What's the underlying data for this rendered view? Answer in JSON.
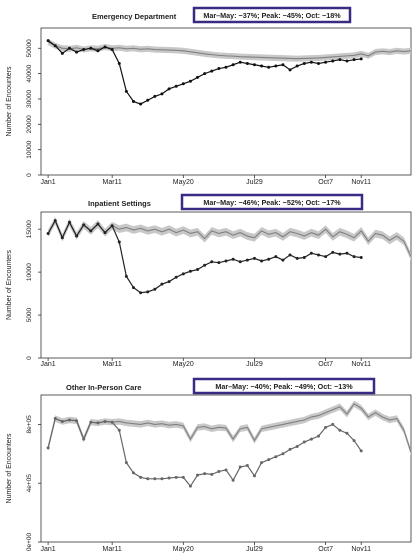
{
  "chart_data": [
    {
      "type": "line",
      "title": "Emergency Department",
      "annotation": "Mar–May: −37%; Peak: −45%; Oct: −18%",
      "ylabel": "Number of Encounters",
      "yticks": [
        0,
        10000,
        20000,
        30000,
        40000,
        50000
      ],
      "ytick_labels": [
        "0",
        "10000",
        "20000",
        "30000",
        "40000",
        "50000"
      ],
      "ylim": [
        0,
        58000
      ],
      "xlim": [
        0,
        52
      ],
      "xticks": [
        1,
        10,
        20,
        30,
        40,
        45
      ],
      "xtick_labels": [
        "Jan1",
        "Mar11",
        "May20",
        "Jul29",
        "Oct7",
        "Nov11"
      ],
      "series": [
        {
          "role": "expected",
          "color": "#808080",
          "x": [
            1,
            2,
            3,
            4,
            5,
            6,
            7,
            8,
            9,
            10,
            11,
            12,
            13,
            14,
            15,
            16,
            17,
            18,
            19,
            20,
            21,
            22,
            23,
            24,
            25,
            26,
            27,
            28,
            29,
            30,
            31,
            32,
            33,
            34,
            35,
            36,
            37,
            38,
            39,
            40,
            41,
            42,
            43,
            44,
            45,
            46,
            47,
            48,
            49,
            50,
            51,
            52
          ],
          "values": [
            52500,
            51000,
            50000,
            49800,
            50200,
            49500,
            50000,
            49800,
            50500,
            50000,
            50200,
            49800,
            50000,
            49600,
            49800,
            49500,
            49400,
            49300,
            49200,
            49000,
            48600,
            48200,
            47800,
            47500,
            47200,
            47000,
            46900,
            46700,
            46600,
            46500,
            46400,
            46300,
            46200,
            46100,
            46000,
            45900,
            46000,
            46100,
            46200,
            46400,
            46600,
            46800,
            47000,
            47200,
            47800,
            47000,
            48500,
            48800,
            48500,
            49000,
            48700,
            49000
          ],
          "band_halfwidth": 1200
        },
        {
          "role": "observed",
          "color": "#111111",
          "x": [
            1,
            2,
            3,
            4,
            5,
            6,
            7,
            8,
            9,
            10,
            11,
            12,
            13,
            14,
            15,
            16,
            17,
            18,
            19,
            20,
            21,
            22,
            23,
            24,
            25,
            26,
            27,
            28,
            29,
            30,
            31,
            32,
            33,
            34,
            35,
            36,
            37,
            38,
            39,
            40,
            41,
            42,
            43,
            44,
            45
          ],
          "values": [
            53000,
            51000,
            48000,
            50000,
            48500,
            49500,
            50000,
            49000,
            50500,
            49500,
            44000,
            33000,
            29000,
            28000,
            29500,
            31000,
            32000,
            34000,
            35000,
            36000,
            37000,
            38500,
            40000,
            41000,
            42000,
            42500,
            43500,
            44500,
            44000,
            43500,
            43000,
            42500,
            43000,
            43500,
            41500,
            43000,
            44000,
            44500,
            44000,
            44500,
            45000,
            45500,
            45000,
            45500,
            45800
          ]
        }
      ]
    },
    {
      "type": "line",
      "title": "Inpatient Settings",
      "annotation": "Mar–May: −46%; Peak: −52%; Oct: −17%",
      "ylabel": "Number of Encounters",
      "yticks": [
        0,
        5000,
        10000,
        15000
      ],
      "ytick_labels": [
        "0",
        "5000",
        "10000",
        "15000"
      ],
      "ylim": [
        0,
        17000
      ],
      "xlim": [
        0,
        52
      ],
      "xticks": [
        1,
        10,
        20,
        30,
        40,
        45
      ],
      "xtick_labels": [
        "Jan1",
        "Mar11",
        "May20",
        "Jul29",
        "Oct7",
        "Nov11"
      ],
      "series": [
        {
          "role": "expected",
          "color": "#808080",
          "x": [
            1,
            2,
            3,
            4,
            5,
            6,
            7,
            8,
            9,
            10,
            11,
            12,
            13,
            14,
            15,
            16,
            17,
            18,
            19,
            20,
            21,
            22,
            23,
            24,
            25,
            26,
            27,
            28,
            29,
            30,
            31,
            32,
            33,
            34,
            35,
            36,
            37,
            38,
            39,
            40,
            41,
            42,
            43,
            44,
            45,
            46,
            47,
            48,
            49,
            50,
            51,
            52
          ],
          "values": [
            14500,
            16000,
            14000,
            15800,
            14200,
            15500,
            14800,
            15600,
            14600,
            15400,
            15000,
            15200,
            14900,
            15100,
            14800,
            15000,
            14700,
            15000,
            14600,
            14900,
            14500,
            14700,
            13900,
            14800,
            14500,
            14700,
            14300,
            14600,
            14200,
            14000,
            14800,
            14400,
            14600,
            14100,
            14700,
            14500,
            14200,
            14600,
            14300,
            15000,
            14100,
            14700,
            14400,
            14000,
            14800,
            13600,
            14500,
            14300,
            13700,
            14200,
            13600,
            11800
          ],
          "band_halfwidth": 450
        },
        {
          "role": "observed",
          "color": "#222222",
          "x": [
            1,
            2,
            3,
            4,
            5,
            6,
            7,
            8,
            9,
            10,
            11,
            12,
            13,
            14,
            15,
            16,
            17,
            18,
            19,
            20,
            21,
            22,
            23,
            24,
            25,
            26,
            27,
            28,
            29,
            30,
            31,
            32,
            33,
            34,
            35,
            36,
            37,
            38,
            39,
            40,
            41,
            42,
            43,
            44,
            45
          ],
          "values": [
            14500,
            16000,
            14000,
            15800,
            14200,
            15500,
            14800,
            15600,
            14600,
            15400,
            13500,
            9500,
            8200,
            7600,
            7700,
            8000,
            8600,
            8900,
            9400,
            9800,
            10100,
            10300,
            10800,
            11200,
            11100,
            11300,
            11500,
            11200,
            11400,
            11600,
            11300,
            11500,
            11800,
            11400,
            12000,
            11600,
            11700,
            12200,
            12000,
            11800,
            12300,
            12100,
            12200,
            11800,
            11700
          ]
        }
      ]
    },
    {
      "type": "line",
      "title": "Other In-Person Care",
      "annotation": "Mar–May: −40%; Peak: −49%; Oct: −13%",
      "ylabel": "Number of Encounters",
      "yticks": [
        0,
        400000,
        800000
      ],
      "ytick_labels": [
        "0e+00",
        "4e+05",
        "8e+05"
      ],
      "ylim": [
        0,
        1000000
      ],
      "xlim": [
        0,
        52
      ],
      "xticks": [
        1,
        10,
        20,
        30,
        40,
        45
      ],
      "xtick_labels": [
        "Jan1",
        "Mar11",
        "May20",
        "Jul29",
        "Oct7",
        "Nov11"
      ],
      "series": [
        {
          "role": "expected",
          "color": "#808080",
          "x": [
            1,
            2,
            3,
            4,
            5,
            6,
            7,
            8,
            9,
            10,
            11,
            12,
            13,
            14,
            15,
            16,
            17,
            18,
            19,
            20,
            21,
            22,
            23,
            24,
            25,
            26,
            27,
            28,
            29,
            30,
            31,
            32,
            33,
            34,
            35,
            36,
            37,
            38,
            39,
            40,
            41,
            42,
            43,
            44,
            45,
            46,
            47,
            48,
            49,
            50,
            51,
            52
          ],
          "values": [
            640000,
            840000,
            820000,
            830000,
            825000,
            700000,
            815000,
            810000,
            820000,
            815000,
            820000,
            810000,
            805000,
            800000,
            810000,
            800000,
            805000,
            795000,
            800000,
            790000,
            700000,
            780000,
            785000,
            770000,
            780000,
            775000,
            700000,
            770000,
            780000,
            690000,
            770000,
            780000,
            790000,
            800000,
            810000,
            820000,
            830000,
            850000,
            860000,
            880000,
            900000,
            920000,
            870000,
            940000,
            910000,
            850000,
            880000,
            850000,
            830000,
            840000,
            760000,
            610000
          ],
          "band_halfwidth": 22000
        },
        {
          "role": "observed",
          "color": "#666666",
          "x": [
            1,
            2,
            3,
            4,
            5,
            6,
            7,
            8,
            9,
            10,
            11,
            12,
            13,
            14,
            15,
            16,
            17,
            18,
            19,
            20,
            21,
            22,
            23,
            24,
            25,
            26,
            27,
            28,
            29,
            30,
            31,
            32,
            33,
            34,
            35,
            36,
            37,
            38,
            39,
            40,
            41,
            42,
            43,
            44,
            45
          ],
          "values": [
            640000,
            840000,
            820000,
            830000,
            825000,
            700000,
            815000,
            810000,
            820000,
            815000,
            760000,
            540000,
            470000,
            440000,
            430000,
            430000,
            430000,
            435000,
            440000,
            440000,
            380000,
            455000,
            465000,
            460000,
            480000,
            490000,
            420000,
            510000,
            520000,
            450000,
            540000,
            560000,
            580000,
            600000,
            630000,
            650000,
            680000,
            700000,
            720000,
            780000,
            800000,
            760000,
            740000,
            690000,
            620000
          ]
        }
      ]
    }
  ]
}
